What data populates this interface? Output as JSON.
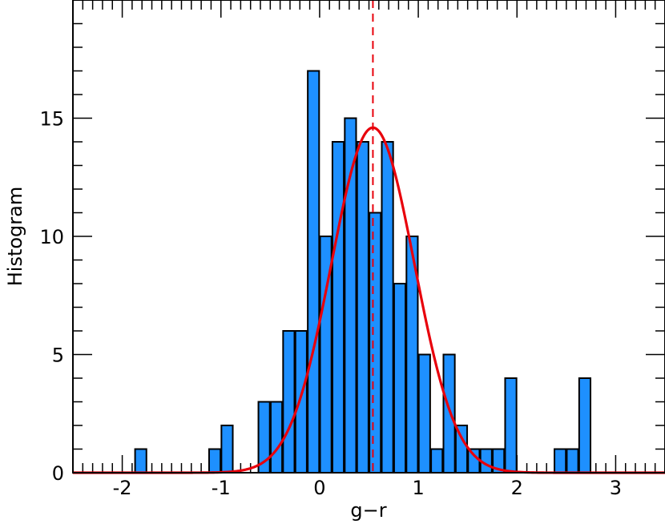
{
  "chart_data": {
    "type": "bar",
    "title": "",
    "xlabel": "g−r",
    "ylabel": "Histogram",
    "xlim": [
      -2.5,
      3.5
    ],
    "ylim": [
      0,
      20
    ],
    "grid": false,
    "bin_width": 0.125,
    "x": [
      -1.8125,
      -1.0625,
      -0.9375,
      -0.5625,
      -0.4375,
      -0.3125,
      -0.1875,
      -0.0625,
      0.0625,
      0.1875,
      0.3125,
      0.4375,
      0.5625,
      0.6875,
      0.8125,
      0.9375,
      1.0625,
      1.1875,
      1.3125,
      1.4375,
      1.5625,
      1.6875,
      1.8125,
      1.9375,
      2.4375,
      2.5625,
      2.6875
    ],
    "values": [
      1,
      1,
      2,
      3,
      3,
      6,
      6,
      17,
      10,
      14,
      15,
      14,
      11,
      14,
      8,
      10,
      5,
      1,
      5,
      2,
      1,
      1,
      1,
      4,
      1,
      1,
      4
    ],
    "gaussian_fit": {
      "mean": 0.54,
      "sigma": 0.42,
      "amplitude": 14.6
    },
    "mean_line_x": 0.54,
    "xticks": [
      {
        "value": -2,
        "label": "-2"
      },
      {
        "value": -1,
        "label": "-1"
      },
      {
        "value": 0,
        "label": "0"
      },
      {
        "value": 1,
        "label": "1"
      },
      {
        "value": 2,
        "label": "2"
      },
      {
        "value": 3,
        "label": "3"
      }
    ],
    "yticks": [
      {
        "value": 0,
        "label": "0"
      },
      {
        "value": 5,
        "label": "5"
      },
      {
        "value": 10,
        "label": "10"
      },
      {
        "value": 15,
        "label": "15"
      }
    ],
    "colors": {
      "bar_fill": "#1E90FF",
      "bar_edge": "#000000",
      "fit_line": "#E8000B",
      "mean_line": "#E8000B"
    }
  }
}
